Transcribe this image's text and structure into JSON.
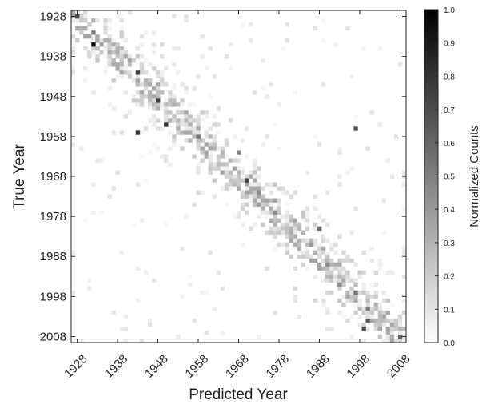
{
  "chart_data": {
    "type": "heatmap",
    "title": "",
    "xlabel": "Predicted Year",
    "ylabel": "True Year",
    "x_range": [
      1927,
      2010
    ],
    "y_range": [
      1927,
      2010
    ],
    "y_axis_inverted": true,
    "x_ticks": [
      1928,
      1938,
      1948,
      1958,
      1968,
      1978,
      1988,
      1998,
      2008
    ],
    "y_ticks": [
      1928,
      1938,
      1948,
      1958,
      1968,
      1978,
      1988,
      1998,
      2008
    ],
    "colorbar": {
      "label": "Normalized Counts",
      "range": [
        0.0,
        1.0
      ],
      "ticks": [
        "0.0",
        "0.1",
        "0.2",
        "0.3",
        "0.4",
        "0.5",
        "0.6",
        "0.7",
        "0.8",
        "0.9",
        "1.0"
      ],
      "colormap": "white-to-black"
    },
    "grid": false,
    "pattern": "diagonal band: predicted year tracks true year, concentrated between 1940s and 2000s with scattered off-diagonal counts",
    "notable_cells": [
      {
        "true_year": 1928,
        "predicted_year": 1928,
        "value": 0.7
      },
      {
        "true_year": 1932,
        "predicted_year": 1932,
        "value": 0.5
      },
      {
        "true_year": 1935,
        "predicted_year": 1932,
        "value": 1.0
      },
      {
        "true_year": 1942,
        "predicted_year": 1943,
        "value": 0.75
      },
      {
        "true_year": 1949,
        "predicted_year": 1948,
        "value": 0.75
      },
      {
        "true_year": 1955,
        "predicted_year": 1950,
        "value": 0.8
      },
      {
        "true_year": 1956,
        "predicted_year": 1997,
        "value": 0.7
      },
      {
        "true_year": 1957,
        "predicted_year": 1943,
        "value": 0.8
      },
      {
        "true_year": 1958,
        "predicted_year": 1958,
        "value": 0.55
      },
      {
        "true_year": 1962,
        "predicted_year": 1968,
        "value": 0.5
      },
      {
        "true_year": 1969,
        "predicted_year": 1970,
        "value": 0.75
      },
      {
        "true_year": 1972,
        "predicted_year": 1973,
        "value": 0.45
      },
      {
        "true_year": 1977,
        "predicted_year": 1977,
        "value": 0.45
      },
      {
        "true_year": 1981,
        "predicted_year": 1988,
        "value": 0.6
      },
      {
        "true_year": 1985,
        "predicted_year": 1986,
        "value": 0.4
      },
      {
        "true_year": 1990,
        "predicted_year": 1990,
        "value": 0.45
      },
      {
        "true_year": 1995,
        "predicted_year": 1993,
        "value": 0.45
      },
      {
        "true_year": 1997,
        "predicted_year": 1997,
        "value": 0.55
      },
      {
        "true_year": 2001,
        "predicted_year": 2000,
        "value": 0.5
      },
      {
        "true_year": 2004,
        "predicted_year": 2000,
        "value": 0.65
      },
      {
        "true_year": 2006,
        "predicted_year": 1999,
        "value": 0.7
      },
      {
        "true_year": 2008,
        "predicted_year": 2008,
        "value": 0.6
      }
    ]
  }
}
